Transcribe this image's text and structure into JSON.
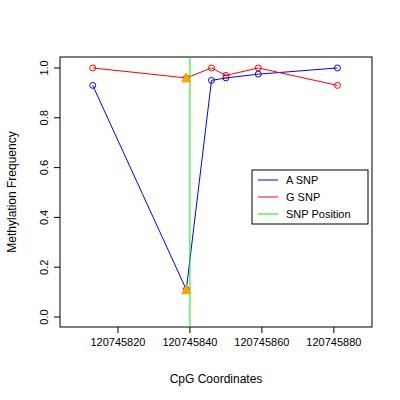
{
  "chart_data": {
    "type": "line",
    "x_label": "CpG Coordinates",
    "y_label": "Methylation Frequency",
    "x": [
      120745813,
      120745839,
      120745846,
      120745850,
      120745859,
      120745881
    ],
    "series": [
      {
        "name": "A SNP",
        "color": "#0000ff",
        "marker": "circle",
        "line_style": "solid",
        "values": [
          0.93,
          0.11,
          0.95,
          0.96,
          0.975,
          1.0
        ]
      },
      {
        "name": "G SNP",
        "color": "#ff0000",
        "marker": "circle",
        "line_style": "solid",
        "values": [
          1.0,
          0.96,
          1.0,
          0.97,
          1.0,
          0.93
        ]
      },
      {
        "name": "SNP Position",
        "color": "#00ee00",
        "type": "vline",
        "x": [
          120745840
        ]
      }
    ],
    "xlim": [
      120745803.9,
      120745890.6
    ],
    "ylim": [
      -0.04,
      1.044
    ],
    "xticks": [
      120745820,
      120745840,
      120745860,
      120745880
    ],
    "yticks": [
      {
        "value": 0,
        "label": "0.0"
      },
      {
        "value": 0.2,
        "label": "0.2"
      },
      {
        "value": 0.4,
        "label": "0.4"
      },
      {
        "value": 0.6,
        "label": "0.6"
      },
      {
        "value": 0.8,
        "label": "0.8"
      },
      {
        "value": 1,
        "label": "1.0"
      }
    ],
    "legend": "right"
  }
}
